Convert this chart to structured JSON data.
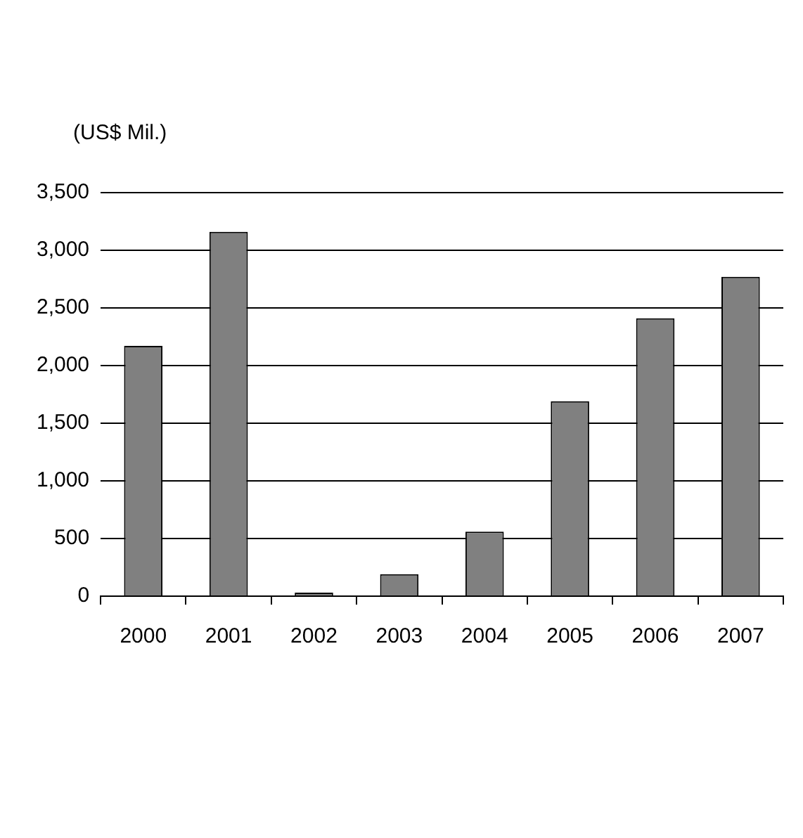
{
  "chart_data": {
    "type": "bar",
    "ylabel": "(US$ Mil.)",
    "categories": [
      "2000",
      "2001",
      "2002",
      "2003",
      "2004",
      "2005",
      "2006",
      "2007"
    ],
    "values": [
      2170,
      3160,
      30,
      190,
      560,
      1690,
      2410,
      2770
    ],
    "color": "#808080",
    "ylim": [
      0,
      3500
    ],
    "yticks": [
      0,
      500,
      {
        "value": 1000,
        "label": "1,000"
      },
      {
        "value": 1500,
        "label": "1,500"
      },
      {
        "value": 2000,
        "label": "2,000"
      },
      {
        "value": 2500,
        "label": "2,500"
      },
      {
        "value": 3000,
        "label": "3,000"
      },
      {
        "value": 3500,
        "label": "3,500"
      }
    ],
    "grid": "y",
    "legend": false
  }
}
